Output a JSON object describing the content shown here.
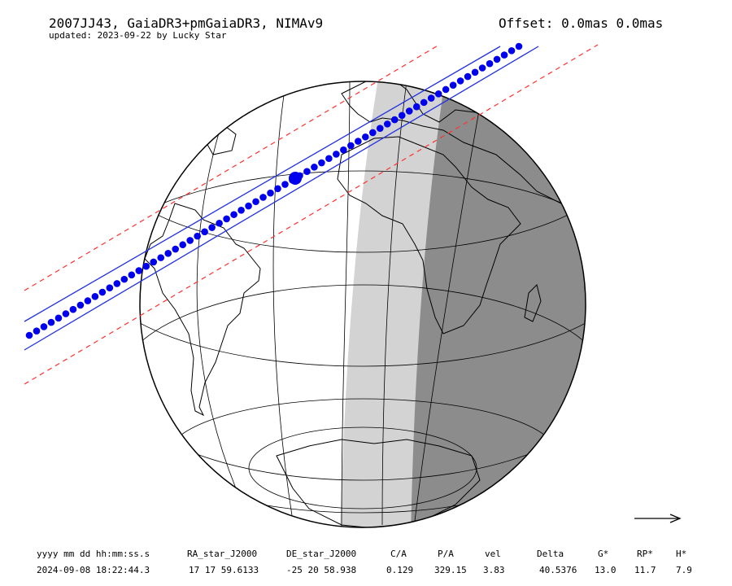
{
  "header": {
    "title": "2007JJ43, GaiaDR3+pmGaiaDR3, NIMAv9",
    "updated": "updated: 2023-09-22 by Lucky Star",
    "offset": "Offset: 0.0mas 0.0mas"
  },
  "table": {
    "headers": [
      "yyyy mm dd hh:mm:ss.s",
      "RA_star_J2000",
      "DE_star_J2000",
      "C/A",
      "P/A",
      "vel",
      "Delta",
      "G*",
      "RP*",
      "H*"
    ],
    "rows": [
      [
        "2024-09-08 18:22:44.3",
        "17 17 59.6133",
        "-25 20 58.938",
        "0.129",
        "329.15",
        "3.83",
        "40.5376",
        "13.0",
        "11.7",
        "7.9"
      ]
    ]
  }
}
